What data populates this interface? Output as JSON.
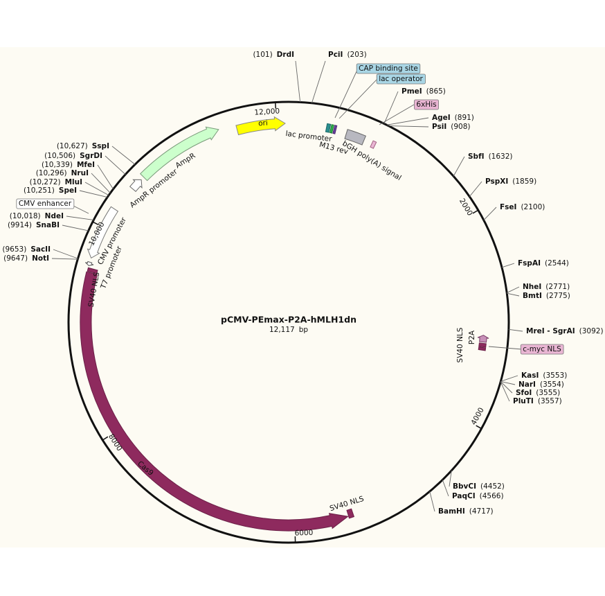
{
  "map": {
    "name": "pCMV-PEmax-P2A-hMLH1dn",
    "size": "12,117",
    "unit": "bp"
  },
  "ticks": [
    "2000",
    "4000",
    "6000",
    "8000",
    "10,000",
    "12,000"
  ],
  "sites": [
    {
      "name": "DrdI",
      "position": "(101)"
    },
    {
      "name": "PciI",
      "position": "(203)"
    },
    {
      "name": "PmeI",
      "position": "(865)"
    },
    {
      "name": "AgeI",
      "position": "(891)"
    },
    {
      "name": "PsiI",
      "position": "(908)"
    },
    {
      "name": "SbfI",
      "position": "(1632)"
    },
    {
      "name": "PspXI",
      "position": "(1859)"
    },
    {
      "name": "FseI",
      "position": "(2100)"
    },
    {
      "name": "FspAI",
      "position": "(2544)"
    },
    {
      "name": "NheI",
      "position": "(2771)"
    },
    {
      "name": "BmtI",
      "position": "(2775)"
    },
    {
      "name": "MreI - SgrAI",
      "position": "(3092)"
    },
    {
      "name": "KasI",
      "position": "(3553)"
    },
    {
      "name": "NarI",
      "position": "(3554)"
    },
    {
      "name": "SfoI",
      "position": "(3555)"
    },
    {
      "name": "PluTI",
      "position": "(3557)"
    },
    {
      "name": "BbvCI",
      "position": "(4452)"
    },
    {
      "name": "PaqCI",
      "position": "(4566)"
    },
    {
      "name": "BamHI",
      "position": "(4717)"
    },
    {
      "name": "SspI",
      "position": "(10,627)"
    },
    {
      "name": "SgrDI",
      "position": "(10,506)"
    },
    {
      "name": "MfeI",
      "position": "(10,339)"
    },
    {
      "name": "NruI",
      "position": "(10,296)"
    },
    {
      "name": "MluI",
      "position": "(10,272)"
    },
    {
      "name": "SpeI",
      "position": "(10,251)"
    },
    {
      "name": "NdeI",
      "position": "(10,018)"
    },
    {
      "name": "SnaBI",
      "position": "(9914)"
    },
    {
      "name": "SacII",
      "position": "(9653)"
    },
    {
      "name": "NotI",
      "position": "(9647)"
    }
  ],
  "features": [
    "ori",
    "lac promoter",
    "M13 rev",
    "CAP binding site",
    "lac operator",
    "bGH poly(A) signal",
    "6xHis",
    "AmpR",
    "AmpR promoter",
    "CMV enhancer",
    "CMV promoter",
    "T7 promoter",
    "SV40 NLS",
    "Cas9",
    "SV40 NLS",
    "SV40 NLS",
    "P2A",
    "c-myc NLS"
  ]
}
